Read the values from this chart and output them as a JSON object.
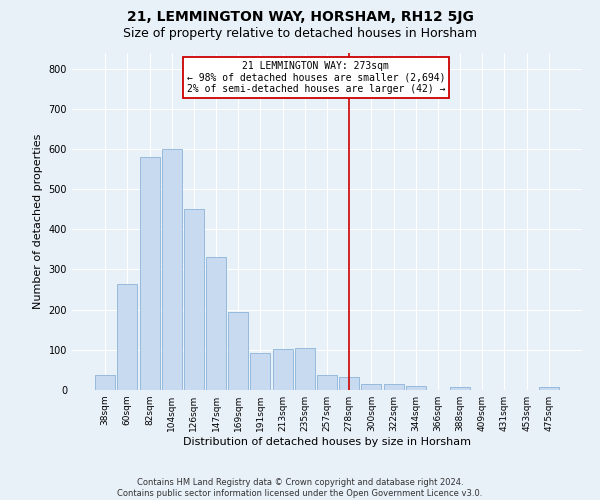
{
  "title": "21, LEMMINGTON WAY, HORSHAM, RH12 5JG",
  "subtitle": "Size of property relative to detached houses in Horsham",
  "xlabel": "Distribution of detached houses by size in Horsham",
  "ylabel": "Number of detached properties",
  "footer_line1": "Contains HM Land Registry data © Crown copyright and database right 2024.",
  "footer_line2": "Contains public sector information licensed under the Open Government Licence v3.0.",
  "categories": [
    "38sqm",
    "60sqm",
    "82sqm",
    "104sqm",
    "126sqm",
    "147sqm",
    "169sqm",
    "191sqm",
    "213sqm",
    "235sqm",
    "257sqm",
    "278sqm",
    "300sqm",
    "322sqm",
    "344sqm",
    "366sqm",
    "388sqm",
    "409sqm",
    "431sqm",
    "453sqm",
    "475sqm"
  ],
  "values": [
    38,
    265,
    580,
    600,
    450,
    330,
    195,
    93,
    103,
    105,
    38,
    33,
    15,
    15,
    11,
    0,
    7,
    0,
    0,
    0,
    7
  ],
  "bar_color": "#c8daf0",
  "bar_edgecolor": "#8ab4d8",
  "vline_color": "#cc0000",
  "annotation_box_color": "#cc0000",
  "highlight_label": "21 LEMMINGTON WAY: 273sqm",
  "annotation_line1": "← 98% of detached houses are smaller (2,694)",
  "annotation_line2": "2% of semi-detached houses are larger (42) →",
  "ylim": [
    0,
    840
  ],
  "yticks": [
    0,
    100,
    200,
    300,
    400,
    500,
    600,
    700,
    800
  ],
  "bg_color": "#e8f0f8",
  "grid_color": "#ffffff",
  "title_fontsize": 10,
  "subtitle_fontsize": 9,
  "axis_label_fontsize": 8,
  "tick_fontsize": 6.5,
  "footer_fontsize": 6,
  "annot_fontsize": 7,
  "vline_x_index": 11.0
}
